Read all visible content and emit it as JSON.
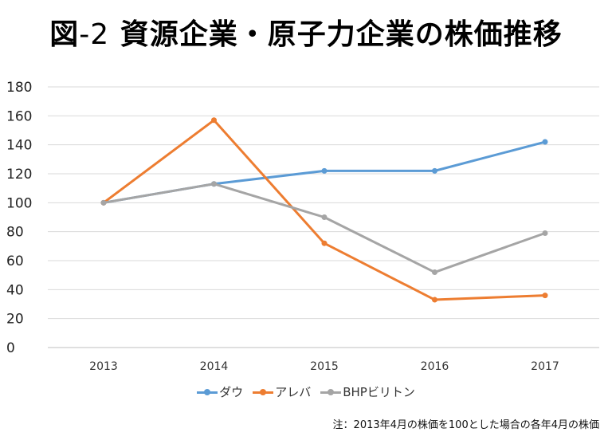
{
  "title": {
    "prefix": "図",
    "number": "-2",
    "text": " 資源企業・原子力企業の株価推移"
  },
  "note": "注：2013年4月の株価を100とした場合の各年4月の株価",
  "chart_data": {
    "type": "line",
    "title": "図-2 資源企業・原子力企業の株価推移",
    "categories": [
      "2013",
      "2014",
      "2015",
      "2016",
      "2017"
    ],
    "ylim": [
      0,
      180
    ],
    "yticks": [
      0,
      20,
      40,
      60,
      80,
      100,
      120,
      140,
      160,
      180
    ],
    "grid": true,
    "legend_position": "bottom",
    "series": [
      {
        "name": "ダウ",
        "color": "#5B9BD5",
        "values": [
          100,
          113,
          122,
          122,
          142
        ]
      },
      {
        "name": "アレバ",
        "color": "#ED7D31",
        "values": [
          100,
          157,
          72,
          33,
          36
        ]
      },
      {
        "name": "BHPビリトン",
        "color": "#A5A5A5",
        "values": [
          100,
          113,
          90,
          52,
          79
        ]
      }
    ]
  }
}
